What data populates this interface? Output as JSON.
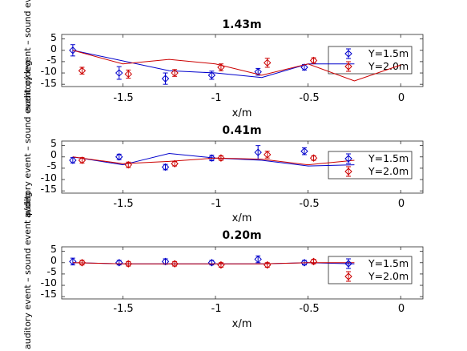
{
  "chart_data": [
    {
      "type": "scatter",
      "title": "1.43m",
      "xlabel": "x/m",
      "ylabel": "auditory event – sound event φ/deg",
      "xlim": [
        -1.83,
        0.12
      ],
      "ylim": [
        -16,
        7
      ],
      "xticks": [
        "-1.5",
        "-1",
        "-0.5",
        "0"
      ],
      "xtick_values": [
        -1.5,
        -1,
        -0.5,
        0
      ],
      "yticks": [
        "5",
        "0",
        "-5",
        "-10",
        "-15"
      ],
      "ytick_values": [
        5,
        0,
        -5,
        -10,
        -15
      ],
      "legend": "top-right",
      "series": [
        {
          "name": "Y=1.5m",
          "color": "#0000cc",
          "points": [
            {
              "x": -1.77,
              "y": 0.0,
              "err": 2.5
            },
            {
              "x": -1.52,
              "y": -10.0,
              "err": 2.8
            },
            {
              "x": -1.27,
              "y": -12.5,
              "err": 2.5
            },
            {
              "x": -1.02,
              "y": -11.0,
              "err": 1.8
            },
            {
              "x": -0.77,
              "y": -9.5,
              "err": 1.5
            },
            {
              "x": -0.52,
              "y": -7.5,
              "err": 1.2
            }
          ],
          "model": {
            "x": [
              -1.77,
              -1.25,
              -1.0,
              -0.75,
              -0.5,
              -0.25
            ],
            "y": [
              0.0,
              -9.0,
              -10.0,
              -12.0,
              -6.0,
              -6.0
            ]
          }
        },
        {
          "name": "Y=2.0m",
          "color": "#cc0000",
          "points": [
            {
              "x": -1.72,
              "y": -9.0,
              "err": 1.5
            },
            {
              "x": -1.47,
              "y": -10.5,
              "err": 1.8
            },
            {
              "x": -1.22,
              "y": -10.0,
              "err": 1.5
            },
            {
              "x": -0.97,
              "y": -7.5,
              "err": 1.5
            },
            {
              "x": -0.72,
              "y": -5.5,
              "err": 2.0
            },
            {
              "x": -0.47,
              "y": -4.5,
              "err": 1.2
            }
          ],
          "model": {
            "x": [
              -1.77,
              -1.5,
              -1.25,
              -1.0,
              -0.75,
              -0.5,
              -0.25,
              0.0
            ],
            "y": [
              0.0,
              -6.0,
              -4.0,
              -6.0,
              -11.0,
              -6.0,
              -13.5,
              -6.5
            ]
          }
        }
      ]
    },
    {
      "type": "scatter",
      "title": "0.41m",
      "xlabel": "x/m",
      "ylabel": "auditory event – sound event φ/deg",
      "xlim": [
        -1.83,
        0.12
      ],
      "ylim": [
        -16,
        7
      ],
      "xticks": [
        "-1.5",
        "-1",
        "-0.5",
        "0"
      ],
      "xtick_values": [
        -1.5,
        -1,
        -0.5,
        0
      ],
      "yticks": [
        "5",
        "0",
        "-5",
        "-10",
        "-15"
      ],
      "ytick_values": [
        5,
        0,
        -5,
        -10,
        -15
      ],
      "legend": "top-right",
      "series": [
        {
          "name": "Y=1.5m",
          "color": "#0000cc",
          "points": [
            {
              "x": -1.77,
              "y": -1.5,
              "err": 1.2
            },
            {
              "x": -1.52,
              "y": 0.0,
              "err": 1.2
            },
            {
              "x": -1.27,
              "y": -4.5,
              "err": 1.2
            },
            {
              "x": -1.02,
              "y": -0.5,
              "err": 1.2
            },
            {
              "x": -0.77,
              "y": 2.0,
              "err": 3.0
            },
            {
              "x": -0.52,
              "y": 2.5,
              "err": 1.5
            }
          ],
          "model": {
            "x": [
              -1.77,
              -1.5,
              -1.25,
              -1.0,
              -0.75,
              -0.5,
              -0.25
            ],
            "y": [
              0.0,
              -3.5,
              1.5,
              -0.5,
              -1.5,
              -4.0,
              -3.5
            ]
          }
        },
        {
          "name": "Y=2.0m",
          "color": "#cc0000",
          "points": [
            {
              "x": -1.72,
              "y": -1.5,
              "err": 1.2
            },
            {
              "x": -1.47,
              "y": -3.5,
              "err": 1.2
            },
            {
              "x": -1.22,
              "y": -3.0,
              "err": 1.0
            },
            {
              "x": -0.97,
              "y": -0.5,
              "err": 1.0
            },
            {
              "x": -0.72,
              "y": 1.0,
              "err": 1.5
            },
            {
              "x": -0.47,
              "y": -0.5,
              "err": 1.0
            }
          ],
          "model": {
            "x": [
              -1.77,
              -1.5,
              -1.25,
              -1.0,
              -0.75,
              -0.5,
              -0.25
            ],
            "y": [
              0.0,
              -3.0,
              -2.0,
              -0.5,
              -1.0,
              -3.5,
              -1.5
            ]
          }
        }
      ]
    },
    {
      "type": "scatter",
      "title": "0.20m",
      "xlabel": "x/m",
      "ylabel": "auditory event – sound event φ/deg",
      "xlim": [
        -1.83,
        0.12
      ],
      "ylim": [
        -16,
        7
      ],
      "xticks": [
        "-1.5",
        "-1",
        "-0.5",
        "0"
      ],
      "xtick_values": [
        -1.5,
        -1,
        -0.5,
        0
      ],
      "yticks": [
        "5",
        "0",
        "-5",
        "-10",
        "-15"
      ],
      "ytick_values": [
        5,
        0,
        -5,
        -10,
        -15
      ],
      "legend": "top-right",
      "series": [
        {
          "name": "Y=1.5m",
          "color": "#0000cc",
          "points": [
            {
              "x": -1.77,
              "y": 0.5,
              "err": 1.5
            },
            {
              "x": -1.52,
              "y": 0.0,
              "err": 1.0
            },
            {
              "x": -1.27,
              "y": 0.5,
              "err": 1.2
            },
            {
              "x": -1.02,
              "y": 0.0,
              "err": 1.0
            },
            {
              "x": -0.77,
              "y": 1.5,
              "err": 1.5
            },
            {
              "x": -0.52,
              "y": 0.0,
              "err": 1.0
            }
          ],
          "model": {
            "x": [
              -1.77,
              -1.5,
              -1.25,
              -1.0,
              -0.75,
              -0.5,
              -0.25
            ],
            "y": [
              0.0,
              -0.5,
              -0.5,
              -0.5,
              -0.5,
              0.0,
              -0.5
            ]
          }
        },
        {
          "name": "Y=2.0m",
          "color": "#cc0000",
          "points": [
            {
              "x": -1.72,
              "y": 0.0,
              "err": 1.0
            },
            {
              "x": -1.47,
              "y": -0.5,
              "err": 1.0
            },
            {
              "x": -1.22,
              "y": -0.5,
              "err": 1.0
            },
            {
              "x": -0.97,
              "y": -1.0,
              "err": 1.0
            },
            {
              "x": -0.72,
              "y": -1.0,
              "err": 1.0
            },
            {
              "x": -0.47,
              "y": 0.5,
              "err": 1.0
            }
          ],
          "model": {
            "x": [
              -1.77,
              -1.5,
              -1.25,
              -1.0,
              -0.75,
              -0.5,
              -0.25
            ],
            "y": [
              0.0,
              -0.5,
              -0.5,
              -0.5,
              -0.5,
              0.0,
              0.0
            ]
          }
        }
      ]
    }
  ]
}
